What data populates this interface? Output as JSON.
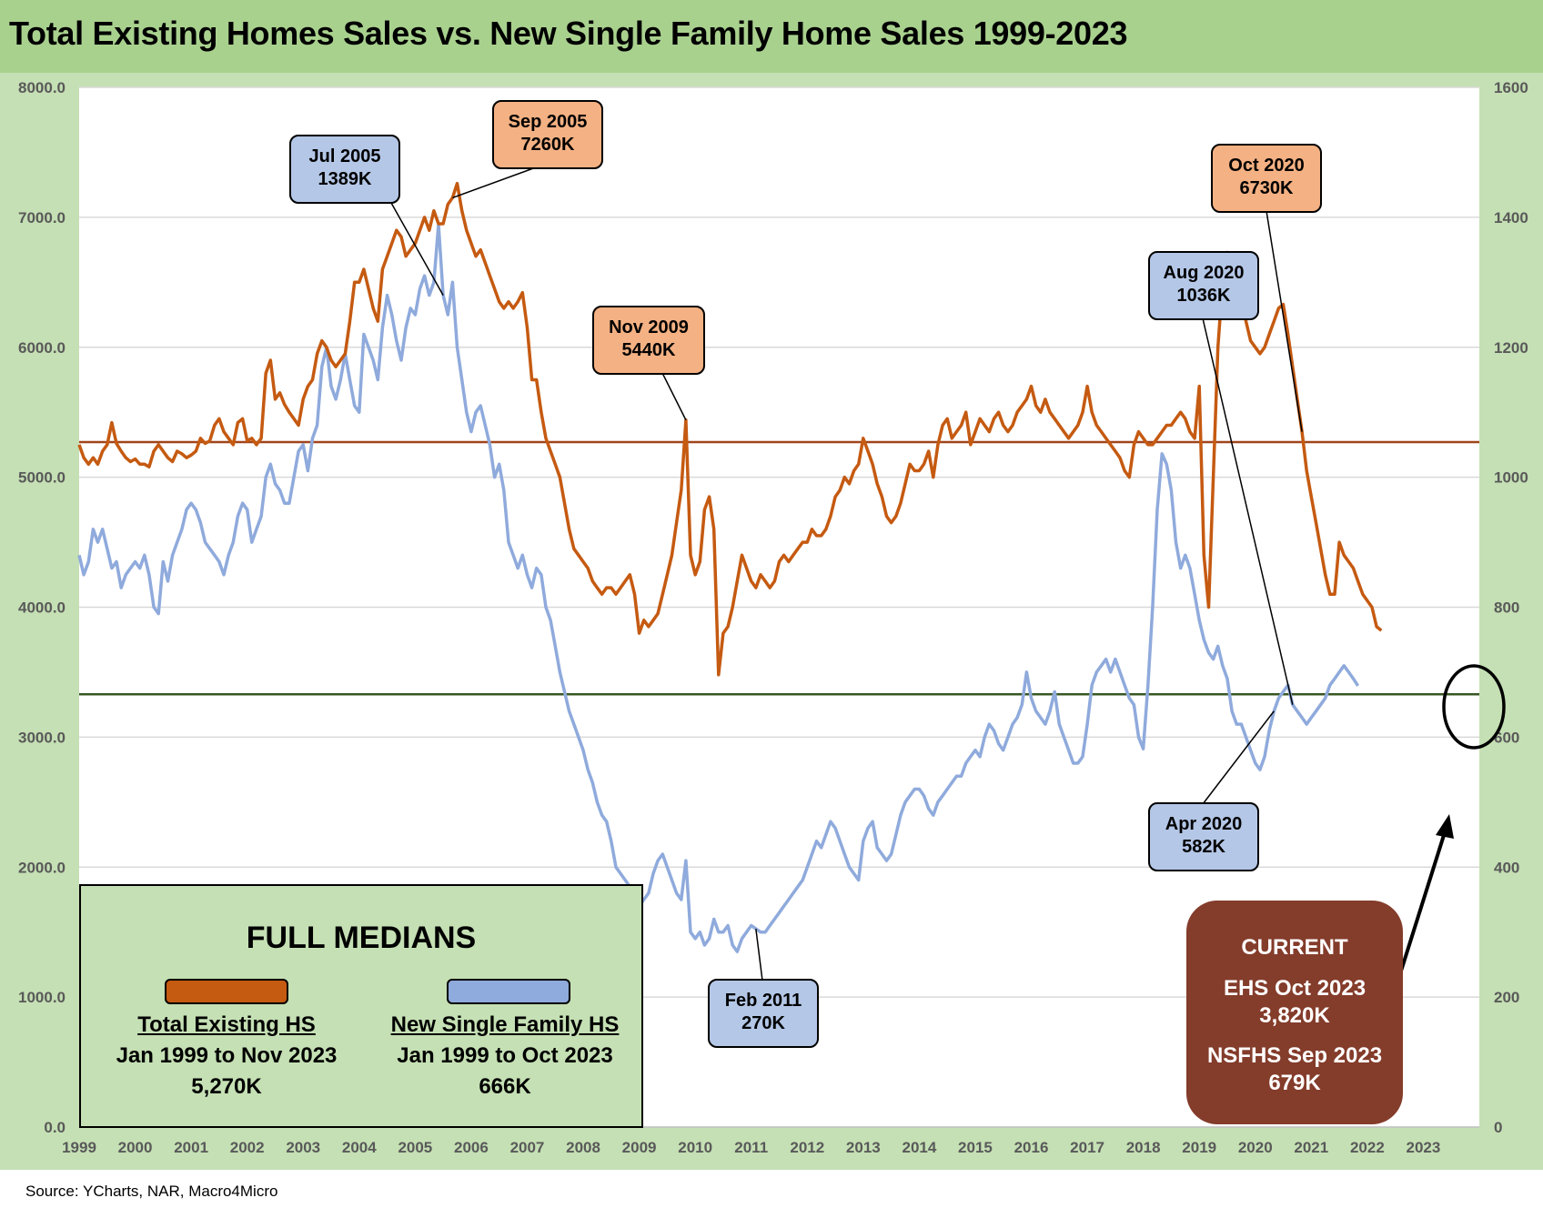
{
  "title": "Total Existing Homes Sales vs. New Single Family Home Sales 1999-2023",
  "source": "Source: YCharts, NAR, Macro4Micro",
  "colors": {
    "existing": "#c55a11",
    "new": "#8faadc",
    "existing_median": "#a0451b",
    "new_median": "#385723",
    "header_bg": "#a9d18e",
    "panel_bg": "#c5e0b4",
    "callout_orange": "#f4b183",
    "callout_blue": "#b4c7e7",
    "current_box": "#843c2b"
  },
  "chart_data": {
    "type": "line",
    "title": "Total Existing Homes Sales vs. New Single Family Home Sales 1999-2023",
    "x_ticks": [
      "1999",
      "2000",
      "2001",
      "2002",
      "2003",
      "2004",
      "2005",
      "2006",
      "2007",
      "2008",
      "2009",
      "2010",
      "2011",
      "2012",
      "2013",
      "2014",
      "2015",
      "2016",
      "2017",
      "2018",
      "2019",
      "2020",
      "2021",
      "2022",
      "2023"
    ],
    "y_left": {
      "range": [
        0,
        8000
      ],
      "ticks": [
        "0.0",
        "1000.0",
        "2000.0",
        "3000.0",
        "4000.0",
        "5000.0",
        "6000.0",
        "7000.0",
        "8000.0"
      ]
    },
    "y_right": {
      "range": [
        0,
        1600
      ],
      "ticks": [
        "0",
        "200",
        "400",
        "600",
        "800",
        "1000",
        "1200",
        "1400",
        "1600"
      ]
    },
    "grid": true,
    "series": [
      {
        "name": "Total Existing HS",
        "axis": "left",
        "start": "1999-01",
        "step": "1 month",
        "values": [
          5250,
          5150,
          5100,
          5150,
          5100,
          5200,
          5250,
          5420,
          5260,
          5200,
          5150,
          5120,
          5140,
          5100,
          5100,
          5080,
          5200,
          5250,
          5200,
          5150,
          5120,
          5200,
          5180,
          5150,
          5170,
          5200,
          5300,
          5260,
          5280,
          5400,
          5450,
          5350,
          5300,
          5250,
          5420,
          5450,
          5280,
          5300,
          5250,
          5300,
          5800,
          5900,
          5600,
          5650,
          5560,
          5500,
          5450,
          5400,
          5600,
          5700,
          5750,
          5950,
          6050,
          6000,
          5900,
          5850,
          5900,
          5950,
          6200,
          6500,
          6500,
          6600,
          6450,
          6300,
          6200,
          6600,
          6700,
          6800,
          6900,
          6850,
          6700,
          6750,
          6800,
          6900,
          7000,
          6900,
          7050,
          6950,
          6950,
          7100,
          7150,
          7260,
          7050,
          6900,
          6800,
          6700,
          6750,
          6650,
          6550,
          6450,
          6350,
          6300,
          6350,
          6300,
          6350,
          6420,
          6150,
          5750,
          5750,
          5500,
          5300,
          5200,
          5100,
          5000,
          4800,
          4600,
          4450,
          4400,
          4350,
          4300,
          4200,
          4150,
          4100,
          4150,
          4150,
          4100,
          4150,
          4200,
          4250,
          4100,
          3800,
          3900,
          3850,
          3900,
          3950,
          4100,
          4250,
          4400,
          4650,
          4900,
          5440,
          4400,
          4250,
          4350,
          4750,
          4850,
          4600,
          3480,
          3800,
          3850,
          4000,
          4200,
          4400,
          4300,
          4200,
          4150,
          4250,
          4200,
          4150,
          4200,
          4350,
          4400,
          4350,
          4400,
          4450,
          4500,
          4500,
          4600,
          4550,
          4550,
          4600,
          4700,
          4850,
          4900,
          5000,
          4950,
          5050,
          5100,
          5300,
          5200,
          5100,
          4950,
          4850,
          4700,
          4650,
          4700,
          4800,
          4950,
          5100,
          5050,
          5050,
          5100,
          5200,
          5000,
          5250,
          5400,
          5450,
          5300,
          5350,
          5400,
          5500,
          5250,
          5350,
          5450,
          5400,
          5350,
          5450,
          5500,
          5400,
          5350,
          5400,
          5500,
          5550,
          5600,
          5700,
          5550,
          5500,
          5600,
          5500,
          5450,
          5400,
          5350,
          5300,
          5350,
          5400,
          5500,
          5700,
          5500,
          5400,
          5350,
          5300,
          5250,
          5200,
          5150,
          5050,
          5000,
          5250,
          5350,
          5300,
          5250,
          5250,
          5300,
          5350,
          5400,
          5400,
          5450,
          5500,
          5450,
          5350,
          5300,
          5700,
          4400,
          4000,
          5000,
          6000,
          6500,
          6730,
          6600,
          6500,
          6450,
          6200,
          6050,
          6000,
          5950,
          6000,
          6100,
          6200,
          6300,
          6330,
          6100,
          5850,
          5600,
          5350,
          5050,
          4850,
          4650,
          4450,
          4250,
          4100,
          4100,
          4500,
          4400,
          4350,
          4300,
          4200,
          4100,
          4050,
          4000,
          3850,
          3820
        ]
      },
      {
        "name": "New Single Family HS",
        "axis": "right",
        "start": "1999-01",
        "step": "1 month",
        "values": [
          880,
          850,
          870,
          920,
          900,
          920,
          890,
          860,
          870,
          830,
          850,
          860,
          870,
          860,
          880,
          850,
          800,
          790,
          870,
          840,
          880,
          900,
          920,
          950,
          960,
          950,
          930,
          900,
          890,
          880,
          870,
          850,
          880,
          900,
          940,
          960,
          950,
          900,
          920,
          940,
          1000,
          1020,
          990,
          980,
          960,
          960,
          1000,
          1040,
          1050,
          1010,
          1060,
          1080,
          1170,
          1200,
          1140,
          1120,
          1150,
          1190,
          1150,
          1110,
          1100,
          1220,
          1200,
          1180,
          1150,
          1230,
          1280,
          1250,
          1210,
          1180,
          1230,
          1260,
          1250,
          1290,
          1310,
          1280,
          1300,
          1389,
          1280,
          1250,
          1300,
          1200,
          1150,
          1100,
          1070,
          1100,
          1110,
          1080,
          1050,
          1000,
          1020,
          980,
          900,
          880,
          860,
          880,
          850,
          830,
          860,
          850,
          800,
          780,
          740,
          700,
          670,
          640,
          620,
          600,
          580,
          550,
          530,
          500,
          480,
          470,
          440,
          400,
          390,
          380,
          370,
          360,
          340,
          350,
          360,
          390,
          410,
          420,
          400,
          380,
          360,
          350,
          410,
          300,
          290,
          300,
          280,
          290,
          320,
          300,
          300,
          310,
          280,
          270,
          290,
          300,
          310,
          305,
          300,
          300,
          310,
          320,
          330,
          340,
          350,
          360,
          370,
          380,
          400,
          420,
          440,
          430,
          450,
          470,
          460,
          440,
          420,
          400,
          390,
          380,
          440,
          460,
          470,
          430,
          420,
          410,
          420,
          450,
          480,
          500,
          510,
          520,
          520,
          510,
          490,
          480,
          500,
          510,
          520,
          530,
          540,
          540,
          560,
          570,
          580,
          570,
          600,
          620,
          610,
          590,
          580,
          600,
          620,
          630,
          650,
          700,
          660,
          640,
          630,
          620,
          640,
          670,
          620,
          600,
          580,
          560,
          560,
          570,
          620,
          680,
          700,
          710,
          720,
          700,
          720,
          700,
          680,
          660,
          650,
          600,
          582,
          680,
          800,
          950,
          1036,
          1020,
          980,
          900,
          860,
          880,
          860,
          820,
          780,
          750,
          730,
          720,
          740,
          710,
          690,
          640,
          620,
          620,
          600,
          580,
          560,
          550,
          570,
          610,
          640,
          660,
          670,
          680,
          650,
          640,
          630,
          620,
          630,
          640,
          650,
          660,
          680,
          690,
          700,
          710,
          700,
          690,
          679
        ]
      }
    ],
    "medians": [
      {
        "name": "Total Existing HS",
        "axis": "left",
        "value": 5270
      },
      {
        "name": "New Single Family HS",
        "axis": "right",
        "value": 666
      }
    ]
  },
  "callouts": [
    {
      "id": "jul2005",
      "label": "Jul 2005",
      "value": "1389K"
    },
    {
      "id": "sep2005",
      "label": "Sep 2005",
      "value": "7260K"
    },
    {
      "id": "nov2009",
      "label": "Nov 2009",
      "value": "5440K"
    },
    {
      "id": "oct2020",
      "label": "Oct 2020",
      "value": "6730K"
    },
    {
      "id": "aug2020",
      "label": "Aug 2020",
      "value": "1036K"
    },
    {
      "id": "apr2020",
      "label": "Apr 2020",
      "value": "582K"
    },
    {
      "id": "feb2011",
      "label": "Feb 2011",
      "value": "270K"
    }
  ],
  "medians_box": {
    "title": "FULL MEDIANS",
    "existing": {
      "label": "Total Existing HS",
      "period": "Jan 1999 to Nov 2023",
      "value": "5,270K"
    },
    "new": {
      "label": "New Single Family HS",
      "period": "Jan 1999 to Oct 2023",
      "value": "666K"
    }
  },
  "current_box": {
    "title": "CURRENT",
    "ehs_label": "EHS Oct 2023",
    "ehs_value": "3,820K",
    "nsfhs_label": "NSFHS Sep 2023",
    "nsfhs_value": "679K"
  }
}
